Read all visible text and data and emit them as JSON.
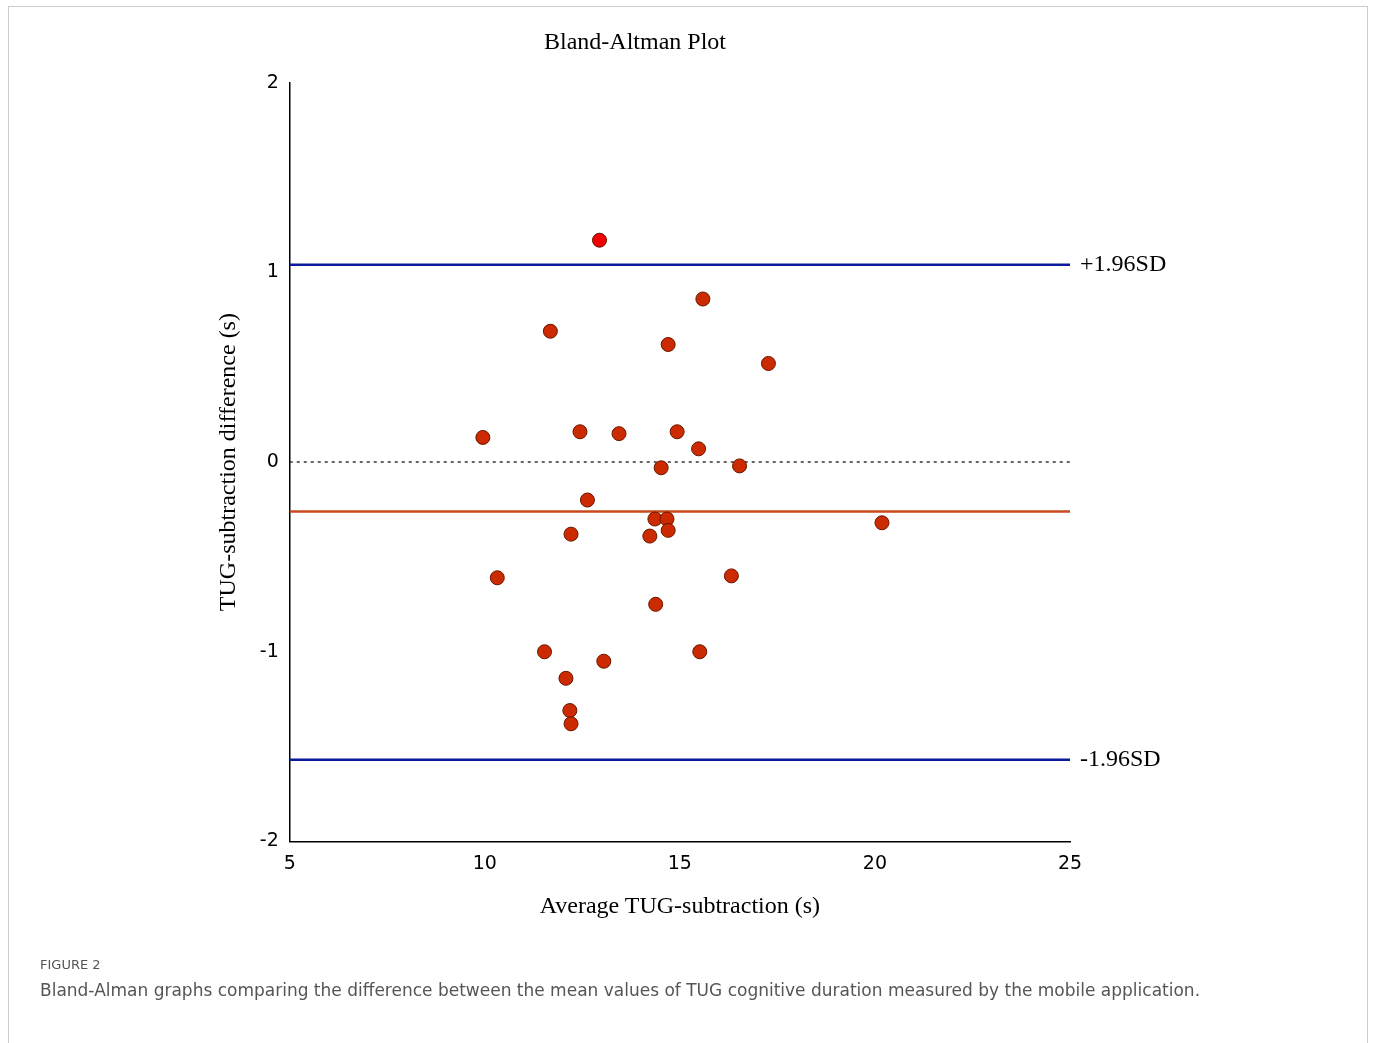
{
  "chart_data": {
    "type": "scatter",
    "title": "Bland-Altman Plot",
    "xlabel": "Average TUG-subtraction (s)",
    "ylabel": "TUG-subtraction difference (s)",
    "marker": "circle",
    "x": [
      12.94,
      15.59,
      11.68,
      14.7,
      17.27,
      9.95,
      12.44,
      13.44,
      14.93,
      15.48,
      14.52,
      16.53,
      12.63,
      12.21,
      14.36,
      14.67,
      14.7,
      14.23,
      20.18,
      10.32,
      16.32,
      14.38,
      11.53,
      15.51,
      13.05,
      12.08,
      12.18,
      12.21
    ],
    "series": [
      {
        "colors": [
          "#ee0000",
          "#cc2a00",
          "#cc2a00",
          "#cc2a00",
          "#cc2a00",
          "#cc2a00",
          "#cc2a00",
          "#cc2a00",
          "#cc2a00",
          "#cc2a00",
          "#cc2a00",
          "#cc2a00",
          "#cc2a00",
          "#cc2a00",
          "#cc2a00",
          "#cc2a00",
          "#cc2a00",
          "#cc2a00",
          "#cc2a00",
          "#cc2a00",
          "#cc2a00",
          "#cc2a00",
          "#cc2a00",
          "#cc2a00",
          "#cc2a00",
          "#cc2a00",
          "#cc2a00",
          "#cc2a00"
        ],
        "values": [
          1.17,
          0.86,
          0.69,
          0.62,
          0.52,
          0.13,
          0.16,
          0.15,
          0.16,
          0.07,
          -0.03,
          -0.02,
          -0.2,
          -0.38,
          -0.3,
          -0.3,
          -0.36,
          -0.39,
          -0.32,
          -0.61,
          -0.6,
          -0.75,
          -1.0,
          -1.0,
          -1.05,
          -1.14,
          -1.31,
          -1.38
        ]
      }
    ],
    "xlim": [
      5,
      25
    ],
    "xticks": [
      5,
      10,
      15,
      20,
      25
    ],
    "ylim": [
      -2,
      2
    ],
    "yticks": [
      -2,
      -1,
      0,
      1,
      2
    ],
    "ref_lines": [
      {
        "axis": "y",
        "value": 1.04,
        "label": "+1.96SD",
        "color": "#0a1a9a",
        "line_style": "solid"
      },
      {
        "axis": "y",
        "value": 0,
        "label": null,
        "color": "#333333",
        "line_style": "dotted"
      },
      {
        "axis": "y",
        "value": -0.26,
        "label": null,
        "color": "#c84a1a",
        "line_style": "solid"
      },
      {
        "axis": "y",
        "value": -1.57,
        "label": "-1.96SD",
        "color": "#0a1a9a",
        "line_style": "solid"
      }
    ],
    "annotations": [
      "FIGURE 2",
      "Bland-Alman graphs comparing the difference between the mean values of TUG cognitive duration measured by the mobile application."
    ]
  }
}
